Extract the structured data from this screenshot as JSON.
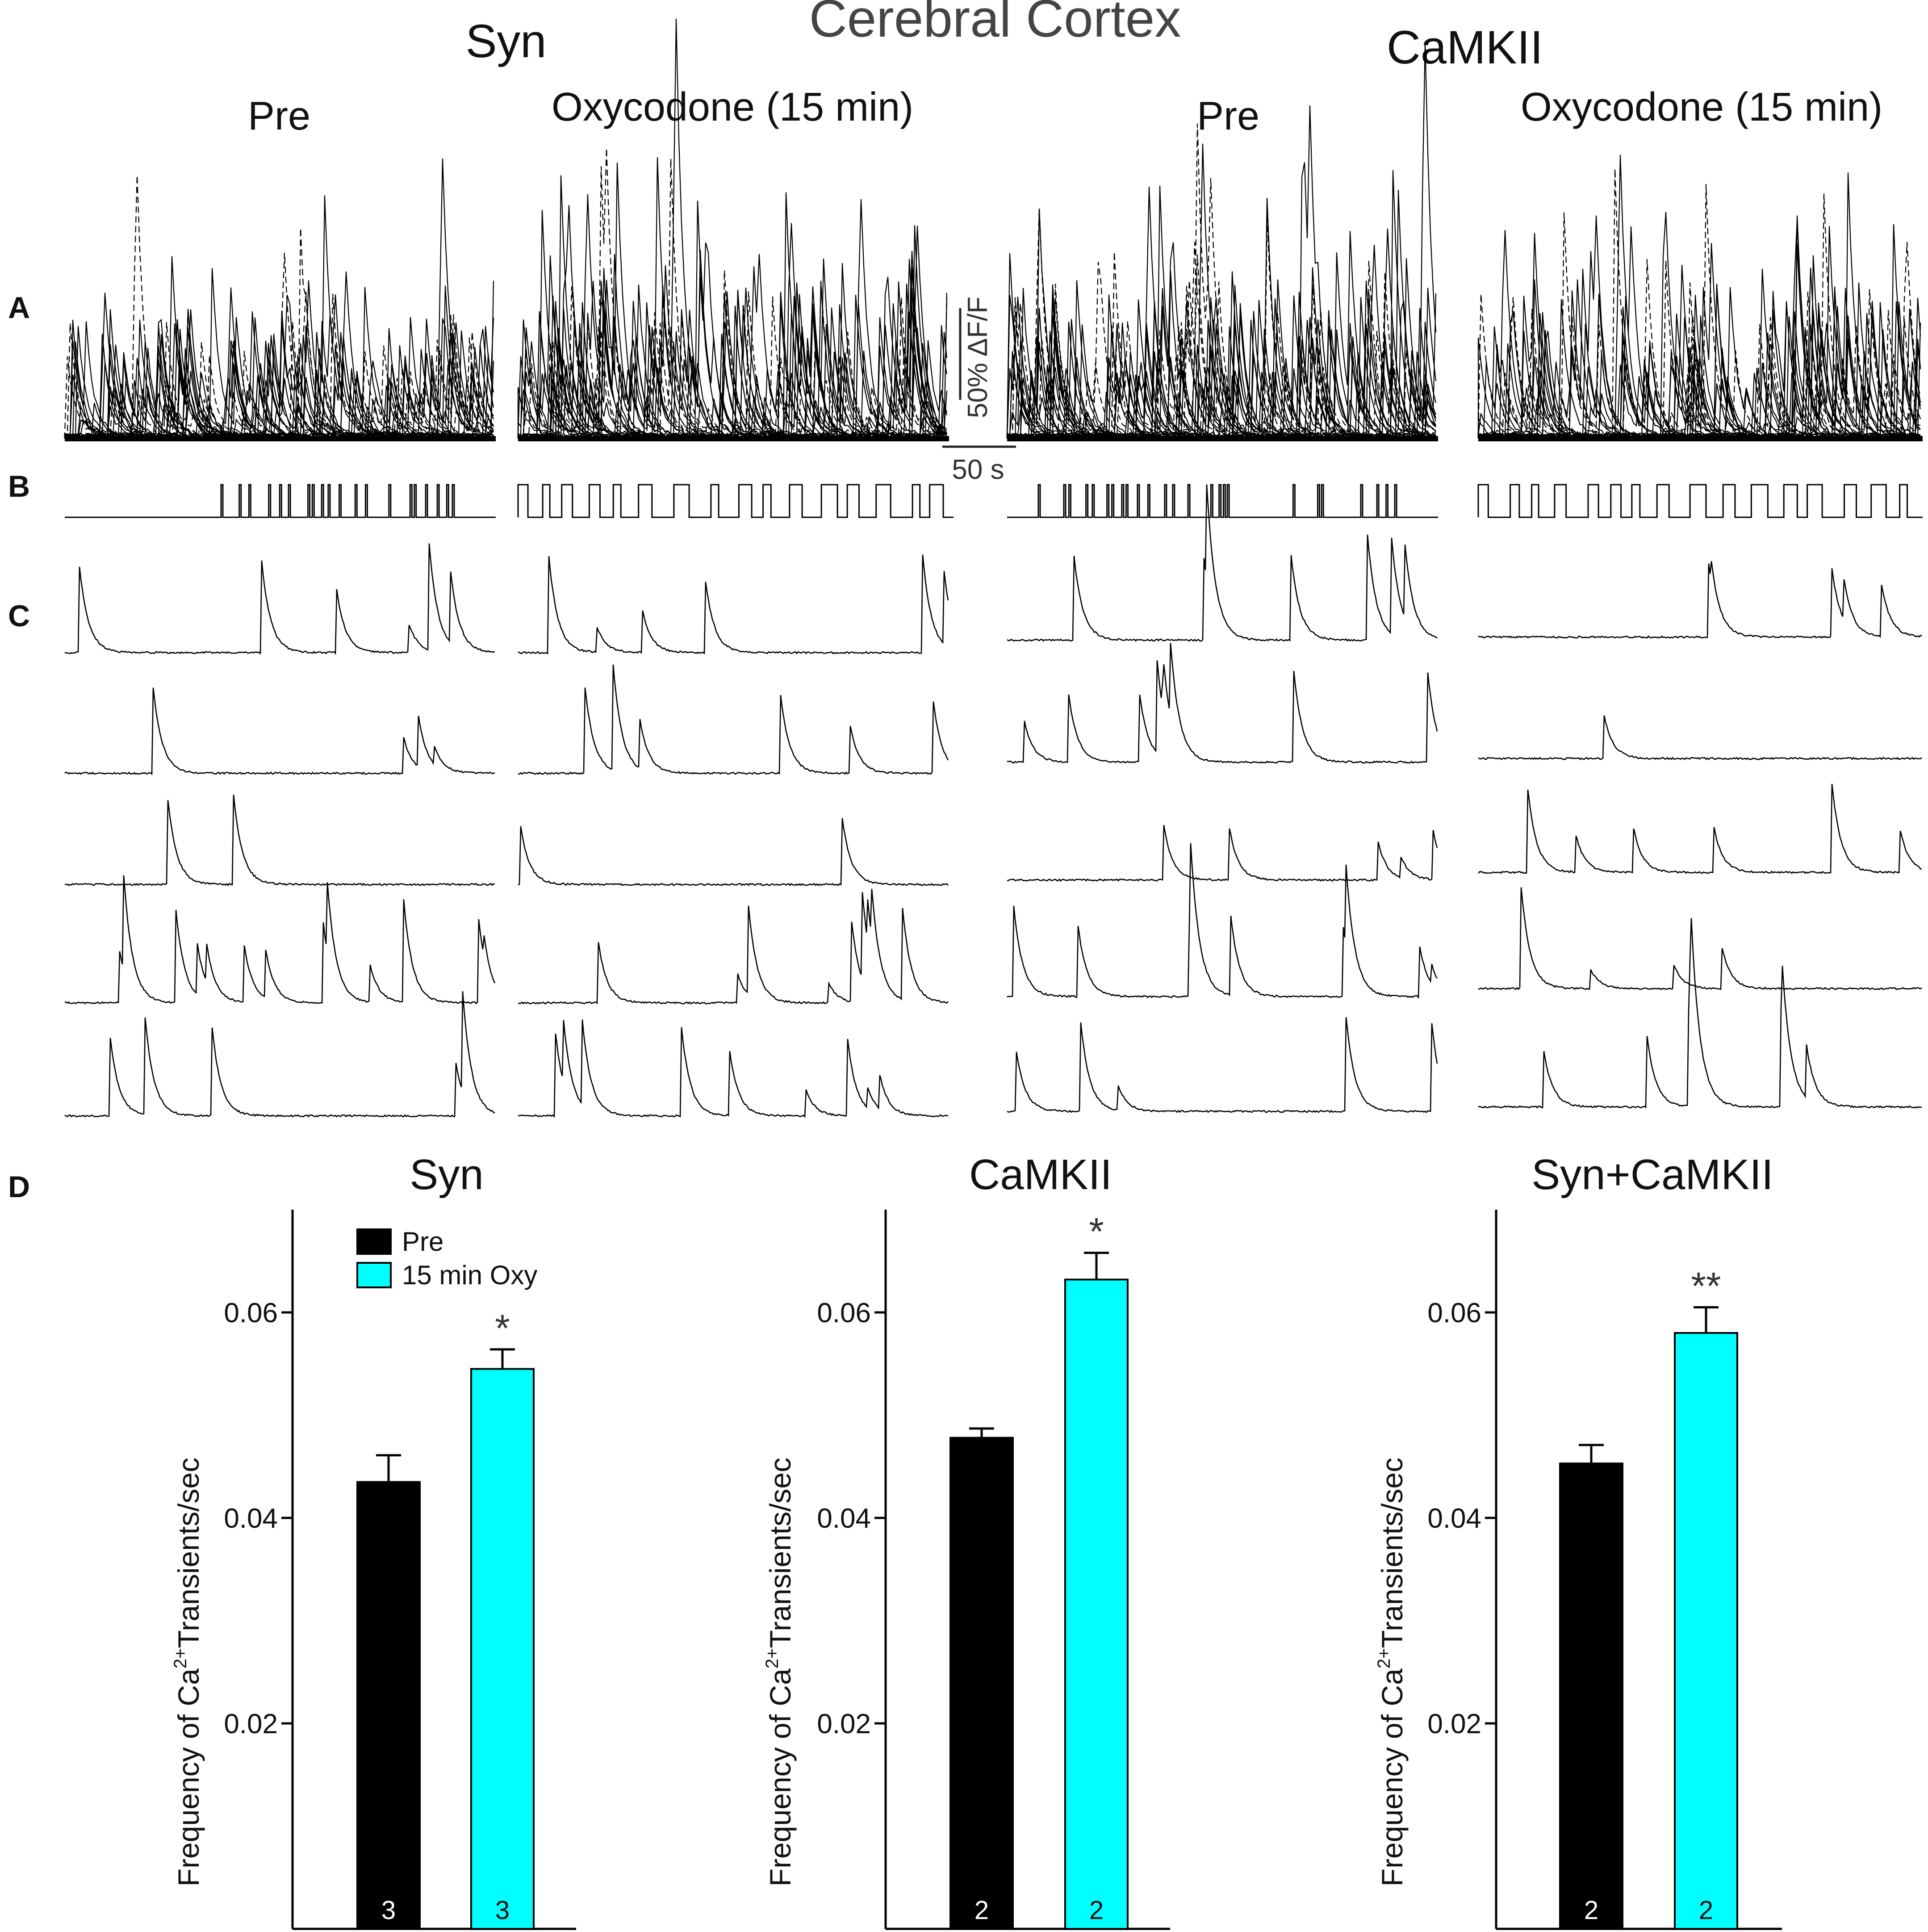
{
  "figure": {
    "main_title": "Cerebral Cortex",
    "group_syn": "Syn",
    "group_camkii": "CaMKII",
    "cond_pre": "Pre",
    "cond_oxy": "Oxycodone (15 min)",
    "panel_labels": [
      "A",
      "B",
      "C",
      "D"
    ],
    "scale_vertical": "50% ΔF/F",
    "scale_horizontal": "50 s",
    "colors": {
      "pre": "#000000",
      "oxy": "#00ffff",
      "trace": "#000000"
    }
  },
  "chart_data": [
    {
      "type": "bar",
      "title": "Syn",
      "ylabel": "Frequency of Ca2+ Transients/sec",
      "ylabel_base": "Frequency of Ca",
      "ylabel_sup": "2+",
      "ylabel_rest": "Transients/sec",
      "ylim": [
        0,
        0.07
      ],
      "yticks": [
        0.02,
        0.04,
        0.06
      ],
      "ytick_labels": [
        "0.02",
        "0.04",
        "0.06"
      ],
      "categories": [
        "Pre",
        "15 min Oxy"
      ],
      "values": [
        0.0435,
        0.0545
      ],
      "errors": [
        0.0026,
        0.0019
      ],
      "n_labels": [
        "3",
        "3"
      ],
      "significance": "*",
      "legend": [
        "Pre",
        "15 min Oxy"
      ]
    },
    {
      "type": "bar",
      "title": "CaMKII",
      "ylabel": "Frequency of Ca2+ Transients/sec",
      "ylabel_base": "Frequency of Ca",
      "ylabel_sup": "2+",
      "ylabel_rest": "Transients/sec",
      "ylim": [
        0,
        0.07
      ],
      "yticks": [
        0.02,
        0.04,
        0.06
      ],
      "ytick_labels": [
        "0.02",
        "0.04",
        "0.06"
      ],
      "categories": [
        "Pre",
        "15 min Oxy"
      ],
      "values": [
        0.0478,
        0.0632
      ],
      "errors": [
        0.0009,
        0.0026
      ],
      "n_labels": [
        "2",
        "2"
      ],
      "significance": "*"
    },
    {
      "type": "bar",
      "title": "Syn+CaMKII",
      "ylabel": "Frequency of Ca2+ Transients/sec",
      "ylabel_base": "Frequency of Ca",
      "ylabel_sup": "2+",
      "ylabel_rest": "Transients/sec",
      "ylim": [
        0,
        0.07
      ],
      "yticks": [
        0.02,
        0.04,
        0.06
      ],
      "ytick_labels": [
        "0.02",
        "0.04",
        "0.06"
      ],
      "categories": [
        "Pre",
        "15 min Oxy"
      ],
      "values": [
        0.0453,
        0.058
      ],
      "errors": [
        0.0018,
        0.0025
      ],
      "n_labels": [
        "2",
        "2"
      ],
      "significance": "**"
    }
  ]
}
